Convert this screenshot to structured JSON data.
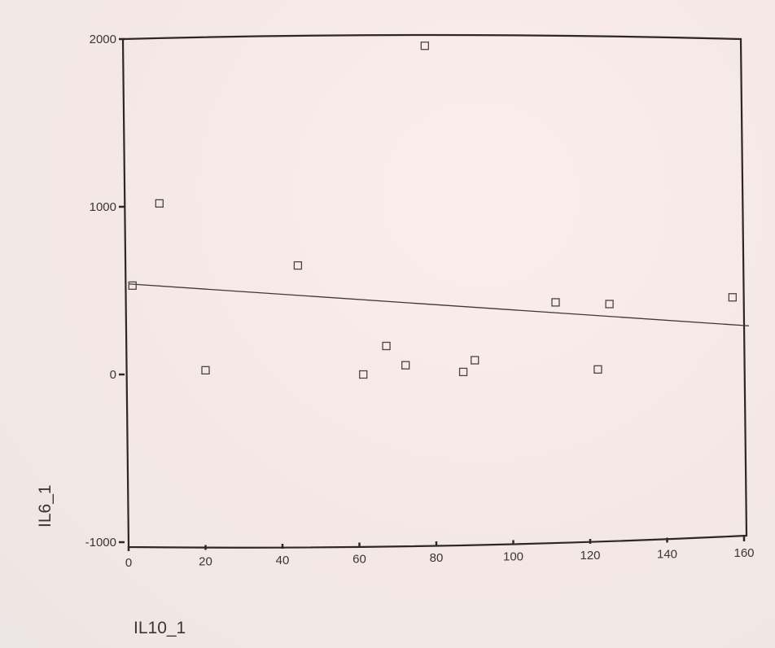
{
  "chart_data": {
    "type": "scatter",
    "xlabel": "IL10_1",
    "ylabel": "IL6_1",
    "xlim": [
      0,
      160
    ],
    "ylim": [
      -1000,
      2000
    ],
    "x_ticks": [
      "0",
      "20",
      "40",
      "60",
      "80",
      "100",
      "120",
      "140",
      "160"
    ],
    "y_ticks": [
      "2000",
      "1000",
      "0",
      "-1000"
    ],
    "grid": false,
    "legend": "none",
    "series": [
      {
        "marker": "open-square",
        "points": [
          {
            "x": 1,
            "y": 530
          },
          {
            "x": 8,
            "y": 1020
          },
          {
            "x": 20,
            "y": 25
          },
          {
            "x": 44,
            "y": 650
          },
          {
            "x": 61,
            "y": 0
          },
          {
            "x": 67,
            "y": 170
          },
          {
            "x": 72,
            "y": 55
          },
          {
            "x": 77,
            "y": 1960
          },
          {
            "x": 87,
            "y": 15
          },
          {
            "x": 90,
            "y": 85
          },
          {
            "x": 111,
            "y": 430
          },
          {
            "x": 122,
            "y": 30
          },
          {
            "x": 125,
            "y": 420
          },
          {
            "x": 157,
            "y": 460
          }
        ]
      }
    ],
    "fit_line": {
      "x": [
        0,
        160
      ],
      "y": [
        540,
        290
      ]
    },
    "colors": {
      "background": "#f5e9e6",
      "ink": "#2c2828"
    }
  }
}
